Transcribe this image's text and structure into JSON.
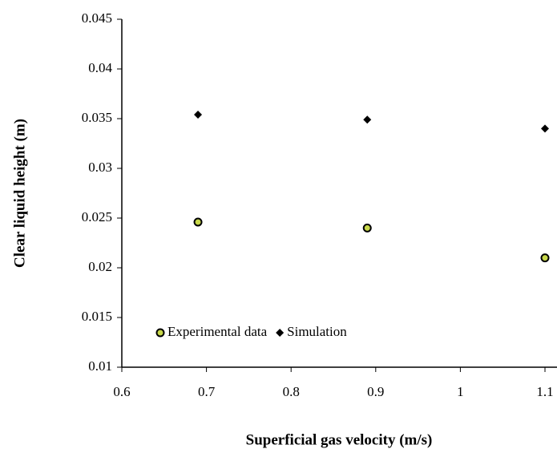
{
  "chart_data": {
    "type": "scatter",
    "x_label": "Superficial gas velocity (m/s)",
    "y_label": "Clear liquid height (m)",
    "series": [
      {
        "name": "Experimental data",
        "color": "#000000",
        "fill": "#c8d84a",
        "marker": "circle",
        "x": [
          0.69,
          0.89,
          1.1
        ],
        "values": [
          0.0246,
          0.024,
          0.021
        ]
      },
      {
        "name": "Simulation",
        "color": "#000000",
        "marker": "diamond",
        "x": [
          0.69,
          0.89,
          1.1
        ],
        "values": [
          0.0354,
          0.0349,
          0.034
        ]
      }
    ],
    "xlim": [
      0.6,
      1.1
    ],
    "xticks": [
      0.6,
      0.7,
      0.8,
      0.9,
      1,
      1.1
    ],
    "ylim": [
      0.01,
      0.045
    ],
    "yticks": [
      0.01,
      0.015,
      0.02,
      0.025,
      0.03,
      0.035,
      0.04,
      0.045
    ],
    "grid": false,
    "legend": "lower left"
  }
}
